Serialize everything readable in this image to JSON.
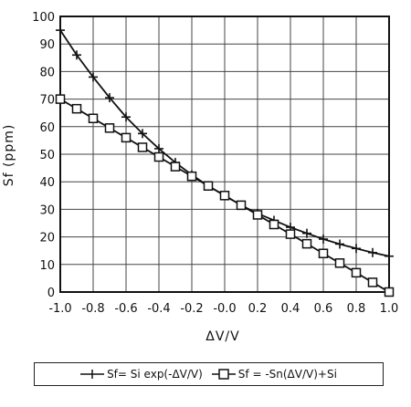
{
  "chart_data": {
    "type": "line",
    "title": "",
    "xlabel": "ΔV/V",
    "ylabel": "Sf (ppm)",
    "xlim": [
      -1.0,
      1.0
    ],
    "ylim": [
      0,
      100
    ],
    "x_ticks": [
      "-1.0",
      "-0.8",
      "-0.6",
      "-0.4",
      "-0.2",
      "-0.0",
      "0.2",
      "0.4",
      "0.6",
      "0.8",
      "1.0"
    ],
    "y_ticks": [
      "0",
      "10",
      "20",
      "30",
      "40",
      "50",
      "60",
      "70",
      "80",
      "90",
      "100"
    ],
    "grid": true,
    "legend_position": "bottom",
    "series": [
      {
        "name": "Sf= Si exp(-ΔV/V)",
        "marker": "plus",
        "x": [
          -1.0,
          -0.9,
          -0.8,
          -0.7,
          -0.6,
          -0.5,
          -0.4,
          -0.3,
          -0.2,
          -0.1,
          0.0,
          0.1,
          0.2,
          0.3,
          0.4,
          0.5,
          0.6,
          0.7,
          0.8,
          0.9,
          1.0
        ],
        "values": [
          95,
          86,
          78,
          70.5,
          63.5,
          57.5,
          52,
          47,
          42.5,
          38.5,
          35,
          31.5,
          28.5,
          26,
          23.5,
          21.3,
          19.2,
          17.4,
          15.8,
          14.3,
          13
        ]
      },
      {
        "name": "Sf = -Sn(ΔV/V)+Si",
        "marker": "square",
        "x": [
          -1.0,
          -0.9,
          -0.8,
          -0.7,
          -0.6,
          -0.5,
          -0.4,
          -0.3,
          -0.2,
          -0.1,
          0.0,
          0.1,
          0.2,
          0.3,
          0.4,
          0.5,
          0.6,
          0.7,
          0.8,
          0.9,
          1.0
        ],
        "values": [
          70,
          66.5,
          63,
          59.5,
          56,
          52.5,
          49,
          45.5,
          42,
          38.5,
          35,
          31.5,
          28,
          24.5,
          21,
          17.5,
          14,
          10.5,
          7,
          3.5,
          0
        ]
      }
    ]
  }
}
